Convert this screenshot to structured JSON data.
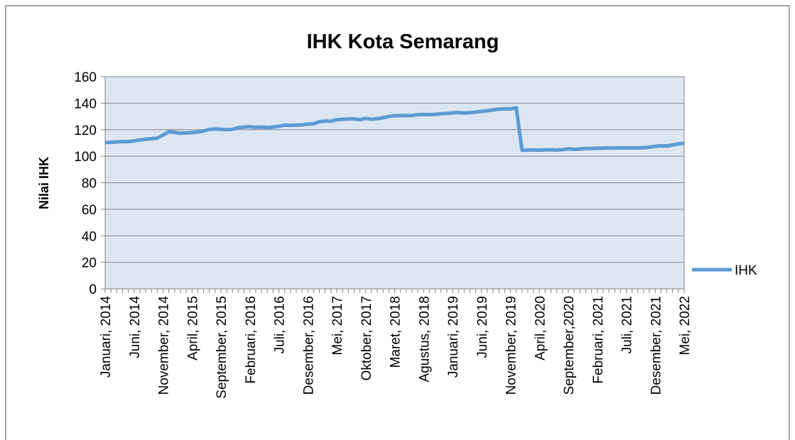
{
  "chart_data": {
    "type": "line",
    "title": "IHK Kota Semarang",
    "y_label": "Nilai IHK",
    "categories": [
      "Januari, 2014",
      null,
      null,
      null,
      null,
      "Juni, 2014",
      null,
      null,
      null,
      null,
      "November, 2014",
      null,
      null,
      null,
      null,
      "April, 2015",
      null,
      null,
      null,
      null,
      "September, 2015",
      null,
      null,
      null,
      null,
      "Februari, 2016",
      null,
      null,
      null,
      null,
      "Juli, 2016",
      null,
      null,
      null,
      null,
      "Desember, 2016",
      null,
      null,
      null,
      null,
      "Mei, 2017",
      null,
      null,
      null,
      null,
      "Oktober, 2017",
      null,
      null,
      null,
      null,
      "Maret, 2018",
      null,
      null,
      null,
      null,
      "Agustus, 2018",
      null,
      null,
      null,
      null,
      "Januari, 2019",
      null,
      null,
      null,
      null,
      "Juni, 2019",
      null,
      null,
      null,
      null,
      "November, 2019",
      null,
      null,
      null,
      null,
      "April, 2020",
      null,
      null,
      null,
      null,
      "September,2020",
      null,
      null,
      null,
      null,
      "Februari, 2021",
      null,
      null,
      null,
      null,
      "Juli, 2021",
      null,
      null,
      null,
      null,
      "Desember, 2021",
      null,
      null,
      null,
      null,
      "Mei, 2022"
    ],
    "series": [
      {
        "name": "IHK",
        "color": "#5b9bd5",
        "values": [
          110.3,
          110.5,
          110.8,
          111,
          111,
          111.5,
          112.3,
          112.8,
          113.2,
          113.6,
          116,
          118.5,
          118,
          117.3,
          117.5,
          117.8,
          118.3,
          119,
          120.2,
          120.5,
          120.3,
          120,
          120.3,
          121.5,
          122,
          122.2,
          121.8,
          122,
          121.6,
          122,
          122.5,
          123.5,
          123.3,
          123.5,
          123.6,
          124.2,
          124.5,
          126,
          126.5,
          126.4,
          127.5,
          127.8,
          128,
          128.2,
          127.5,
          128.5,
          127.8,
          128.3,
          129,
          130,
          130.6,
          130.7,
          130.6,
          130.7,
          131.4,
          131.5,
          131.4,
          131.6,
          132,
          132.3,
          132.7,
          133,
          132.6,
          132.8,
          133.3,
          133.8,
          134.3,
          134.9,
          135.5,
          135.8,
          135.6,
          136.5,
          104.5,
          104.7,
          104.7,
          104.6,
          104.8,
          104.9,
          104.7,
          104.9,
          105.6,
          105.2,
          105.4,
          105.8,
          105.9,
          106,
          106.1,
          106.2,
          106.2,
          106.3,
          106.2,
          106.3,
          106.3,
          106.4,
          106.8,
          107.5,
          107.8,
          107.7,
          108.5,
          109.3,
          109.8
        ]
      }
    ],
    "ylim": [
      0,
      160
    ],
    "yticks": [
      0,
      20,
      40,
      60,
      80,
      100,
      120,
      140,
      160
    ],
    "grid": true,
    "legend": "right"
  }
}
